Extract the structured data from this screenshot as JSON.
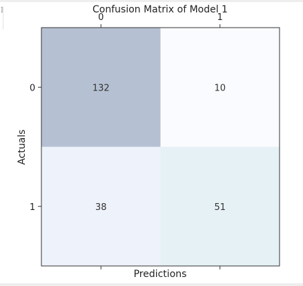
{
  "chart_data": {
    "type": "heatmap",
    "title": "Confusion Matrix of Model 1",
    "xlabel": "Predictions",
    "ylabel": "Actuals",
    "x_categories": [
      "0",
      "1"
    ],
    "y_categories": [
      "0",
      "1"
    ],
    "values": [
      [
        132,
        10
      ],
      [
        38,
        51
      ]
    ],
    "colors": {
      "max": "#b5c1d3",
      "min": "#fafbfe",
      "cells": [
        [
          "#b5c1d3",
          "#fafbfe"
        ],
        [
          "#eef2fa",
          "#e6f1f6"
        ]
      ]
    },
    "x_ticks_position": "top",
    "grid": false
  }
}
